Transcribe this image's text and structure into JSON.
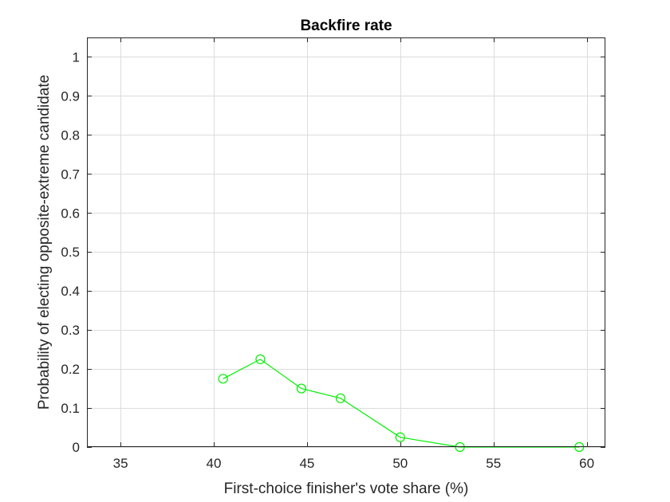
{
  "chart_data": {
    "type": "line",
    "title": "Backfire rate",
    "xlabel": "First-choice finisher's vote share (%)",
    "ylabel": "Probability of electing opposite-extreme candidate",
    "xlim": [
      33.2,
      61.0
    ],
    "ylim": [
      0,
      1.05
    ],
    "xticks": [
      35,
      40,
      45,
      50,
      55,
      60
    ],
    "yticks": [
      0,
      0.1,
      0.2,
      0.3,
      0.4,
      0.5,
      0.6,
      0.7,
      0.8,
      0.9,
      1
    ],
    "xtick_labels": [
      "35",
      "40",
      "45",
      "50",
      "55",
      "60"
    ],
    "ytick_labels": [
      "0",
      "0.1",
      "0.2",
      "0.3",
      "0.4",
      "0.5",
      "0.6",
      "0.7",
      "0.8",
      "0.9",
      "1"
    ],
    "grid": true,
    "series": [
      {
        "color": "#00ee00",
        "marker": "open-circle",
        "x": [
          40.5,
          42.5,
          44.7,
          46.8,
          50.0,
          53.2,
          59.6
        ],
        "y": [
          0.175,
          0.225,
          0.15,
          0.125,
          0.025,
          0.0,
          0.0
        ]
      }
    ]
  }
}
